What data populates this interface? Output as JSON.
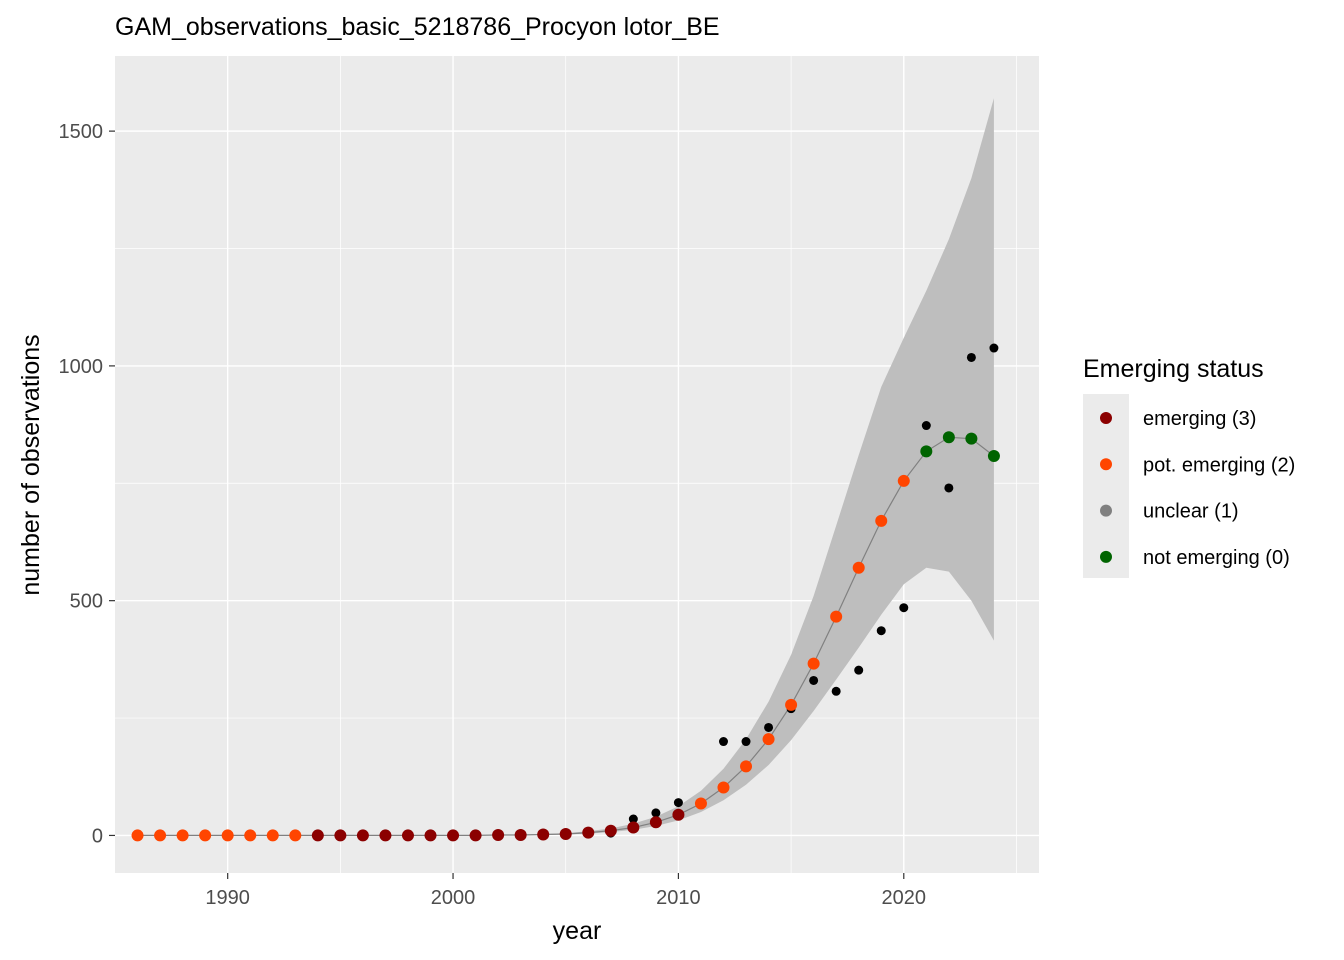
{
  "chart_data": {
    "type": "scatter",
    "title": "GAM_observations_basic_5218786_Procyon lotor_BE",
    "xlabel": "year",
    "ylabel": "number of observations",
    "xlim": [
      1985,
      2026
    ],
    "ylim": [
      -80,
      1660
    ],
    "x_ticks": [
      1990,
      2000,
      2010,
      2020
    ],
    "y_ticks": [
      0,
      500,
      1000,
      1500
    ],
    "grid": true,
    "legend": {
      "title": "Emerging status",
      "placement": "right",
      "entries": [
        {
          "label": "emerging (3)",
          "color": "#8b0000"
        },
        {
          "label": "pot. emerging (2)",
          "color": "#ff4500"
        },
        {
          "label": "unclear (1)",
          "color": "#808080"
        },
        {
          "label": "not emerging (0)",
          "color": "#006400"
        }
      ]
    },
    "observed": {
      "color": "#000000",
      "points": [
        {
          "x": 1986,
          "y": 0
        },
        {
          "x": 1987,
          "y": 0
        },
        {
          "x": 1988,
          "y": 0
        },
        {
          "x": 1989,
          "y": 0
        },
        {
          "x": 1990,
          "y": 0
        },
        {
          "x": 1991,
          "y": 0
        },
        {
          "x": 1992,
          "y": 0
        },
        {
          "x": 1993,
          "y": 0
        },
        {
          "x": 1994,
          "y": 0
        },
        {
          "x": 1995,
          "y": 0
        },
        {
          "x": 1996,
          "y": 0
        },
        {
          "x": 1997,
          "y": 0
        },
        {
          "x": 1998,
          "y": 0
        },
        {
          "x": 1999,
          "y": 0
        },
        {
          "x": 2000,
          "y": 0
        },
        {
          "x": 2001,
          "y": 0
        },
        {
          "x": 2002,
          "y": 1
        },
        {
          "x": 2003,
          "y": 1
        },
        {
          "x": 2004,
          "y": 2
        },
        {
          "x": 2005,
          "y": 3
        },
        {
          "x": 2006,
          "y": 5
        },
        {
          "x": 2007,
          "y": 5
        },
        {
          "x": 2008,
          "y": 35
        },
        {
          "x": 2009,
          "y": 48
        },
        {
          "x": 2010,
          "y": 70
        },
        {
          "x": 2011,
          "y": 70
        },
        {
          "x": 2012,
          "y": 200
        },
        {
          "x": 2013,
          "y": 200
        },
        {
          "x": 2014,
          "y": 230
        },
        {
          "x": 2015,
          "y": 270
        },
        {
          "x": 2016,
          "y": 330
        },
        {
          "x": 2017,
          "y": 307
        },
        {
          "x": 2018,
          "y": 352
        },
        {
          "x": 2019,
          "y": 436
        },
        {
          "x": 2020,
          "y": 485
        },
        {
          "x": 2021,
          "y": 873
        },
        {
          "x": 2022,
          "y": 740
        },
        {
          "x": 2023,
          "y": 1018
        },
        {
          "x": 2024,
          "y": 1038
        }
      ]
    },
    "fitted": {
      "line_color": "#808080",
      "band_color": "#bebebe",
      "points": [
        {
          "x": 1986,
          "y": 0,
          "lower": 0,
          "upper": 0,
          "status": "pot. emerging (2)"
        },
        {
          "x": 1987,
          "y": 0,
          "lower": 0,
          "upper": 0,
          "status": "pot. emerging (2)"
        },
        {
          "x": 1988,
          "y": 0,
          "lower": 0,
          "upper": 0,
          "status": "pot. emerging (2)"
        },
        {
          "x": 1989,
          "y": 0,
          "lower": 0,
          "upper": 0,
          "status": "pot. emerging (2)"
        },
        {
          "x": 1990,
          "y": 0,
          "lower": 0,
          "upper": 0,
          "status": "pot. emerging (2)"
        },
        {
          "x": 1991,
          "y": 0,
          "lower": 0,
          "upper": 0,
          "status": "pot. emerging (2)"
        },
        {
          "x": 1992,
          "y": 0,
          "lower": 0,
          "upper": 0,
          "status": "pot. emerging (2)"
        },
        {
          "x": 1993,
          "y": 0,
          "lower": 0,
          "upper": 0,
          "status": "pot. emerging (2)"
        },
        {
          "x": 1994,
          "y": 0,
          "lower": 0,
          "upper": 0,
          "status": "emerging (3)"
        },
        {
          "x": 1995,
          "y": 0,
          "lower": 0,
          "upper": 0,
          "status": "emerging (3)"
        },
        {
          "x": 1996,
          "y": 0,
          "lower": 0,
          "upper": 0,
          "status": "emerging (3)"
        },
        {
          "x": 1997,
          "y": 0,
          "lower": 0,
          "upper": 0,
          "status": "emerging (3)"
        },
        {
          "x": 1998,
          "y": 0,
          "lower": 0,
          "upper": 0,
          "status": "emerging (3)"
        },
        {
          "x": 1999,
          "y": 0,
          "lower": 0,
          "upper": 0,
          "status": "emerging (3)"
        },
        {
          "x": 2000,
          "y": 0,
          "lower": 0,
          "upper": 0,
          "status": "emerging (3)"
        },
        {
          "x": 2001,
          "y": 0,
          "lower": 0,
          "upper": 1,
          "status": "emerging (3)"
        },
        {
          "x": 2002,
          "y": 1,
          "lower": 0,
          "upper": 1,
          "status": "emerging (3)"
        },
        {
          "x": 2003,
          "y": 1,
          "lower": 1,
          "upper": 2,
          "status": "emerging (3)"
        },
        {
          "x": 2004,
          "y": 2,
          "lower": 1,
          "upper": 3,
          "status": "emerging (3)"
        },
        {
          "x": 2005,
          "y": 3,
          "lower": 2,
          "upper": 5,
          "status": "emerging (3)"
        },
        {
          "x": 2006,
          "y": 6,
          "lower": 4,
          "upper": 9,
          "status": "emerging (3)"
        },
        {
          "x": 2007,
          "y": 10,
          "lower": 7,
          "upper": 15,
          "status": "emerging (3)"
        },
        {
          "x": 2008,
          "y": 17,
          "lower": 12,
          "upper": 25,
          "status": "emerging (3)"
        },
        {
          "x": 2009,
          "y": 28,
          "lower": 20,
          "upper": 40,
          "status": "emerging (3)"
        },
        {
          "x": 2010,
          "y": 44,
          "lower": 32,
          "upper": 62,
          "status": "emerging (3)"
        },
        {
          "x": 2011,
          "y": 68,
          "lower": 50,
          "upper": 95,
          "status": "pot. emerging (2)"
        },
        {
          "x": 2012,
          "y": 102,
          "lower": 75,
          "upper": 142,
          "status": "pot. emerging (2)"
        },
        {
          "x": 2013,
          "y": 147,
          "lower": 108,
          "upper": 205,
          "status": "pot. emerging (2)"
        },
        {
          "x": 2014,
          "y": 205,
          "lower": 150,
          "upper": 285,
          "status": "pot. emerging (2)"
        },
        {
          "x": 2015,
          "y": 278,
          "lower": 203,
          "upper": 385,
          "status": "pot. emerging (2)"
        },
        {
          "x": 2016,
          "y": 366,
          "lower": 265,
          "upper": 510,
          "status": "pot. emerging (2)"
        },
        {
          "x": 2017,
          "y": 466,
          "lower": 332,
          "upper": 660,
          "status": "pot. emerging (2)"
        },
        {
          "x": 2018,
          "y": 570,
          "lower": 400,
          "upper": 810,
          "status": "pot. emerging (2)"
        },
        {
          "x": 2019,
          "y": 670,
          "lower": 470,
          "upper": 955,
          "status": "pot. emerging (2)"
        },
        {
          "x": 2020,
          "y": 755,
          "lower": 535,
          "upper": 1060,
          "status": "pot. emerging (2)"
        },
        {
          "x": 2021,
          "y": 818,
          "lower": 570,
          "upper": 1160,
          "status": "not emerging (0)"
        },
        {
          "x": 2022,
          "y": 848,
          "lower": 562,
          "upper": 1270,
          "status": "not emerging (0)"
        },
        {
          "x": 2023,
          "y": 845,
          "lower": 500,
          "upper": 1400,
          "status": "not emerging (0)"
        },
        {
          "x": 2024,
          "y": 808,
          "lower": 415,
          "upper": 1570,
          "status": "not emerging (0)"
        }
      ]
    }
  }
}
